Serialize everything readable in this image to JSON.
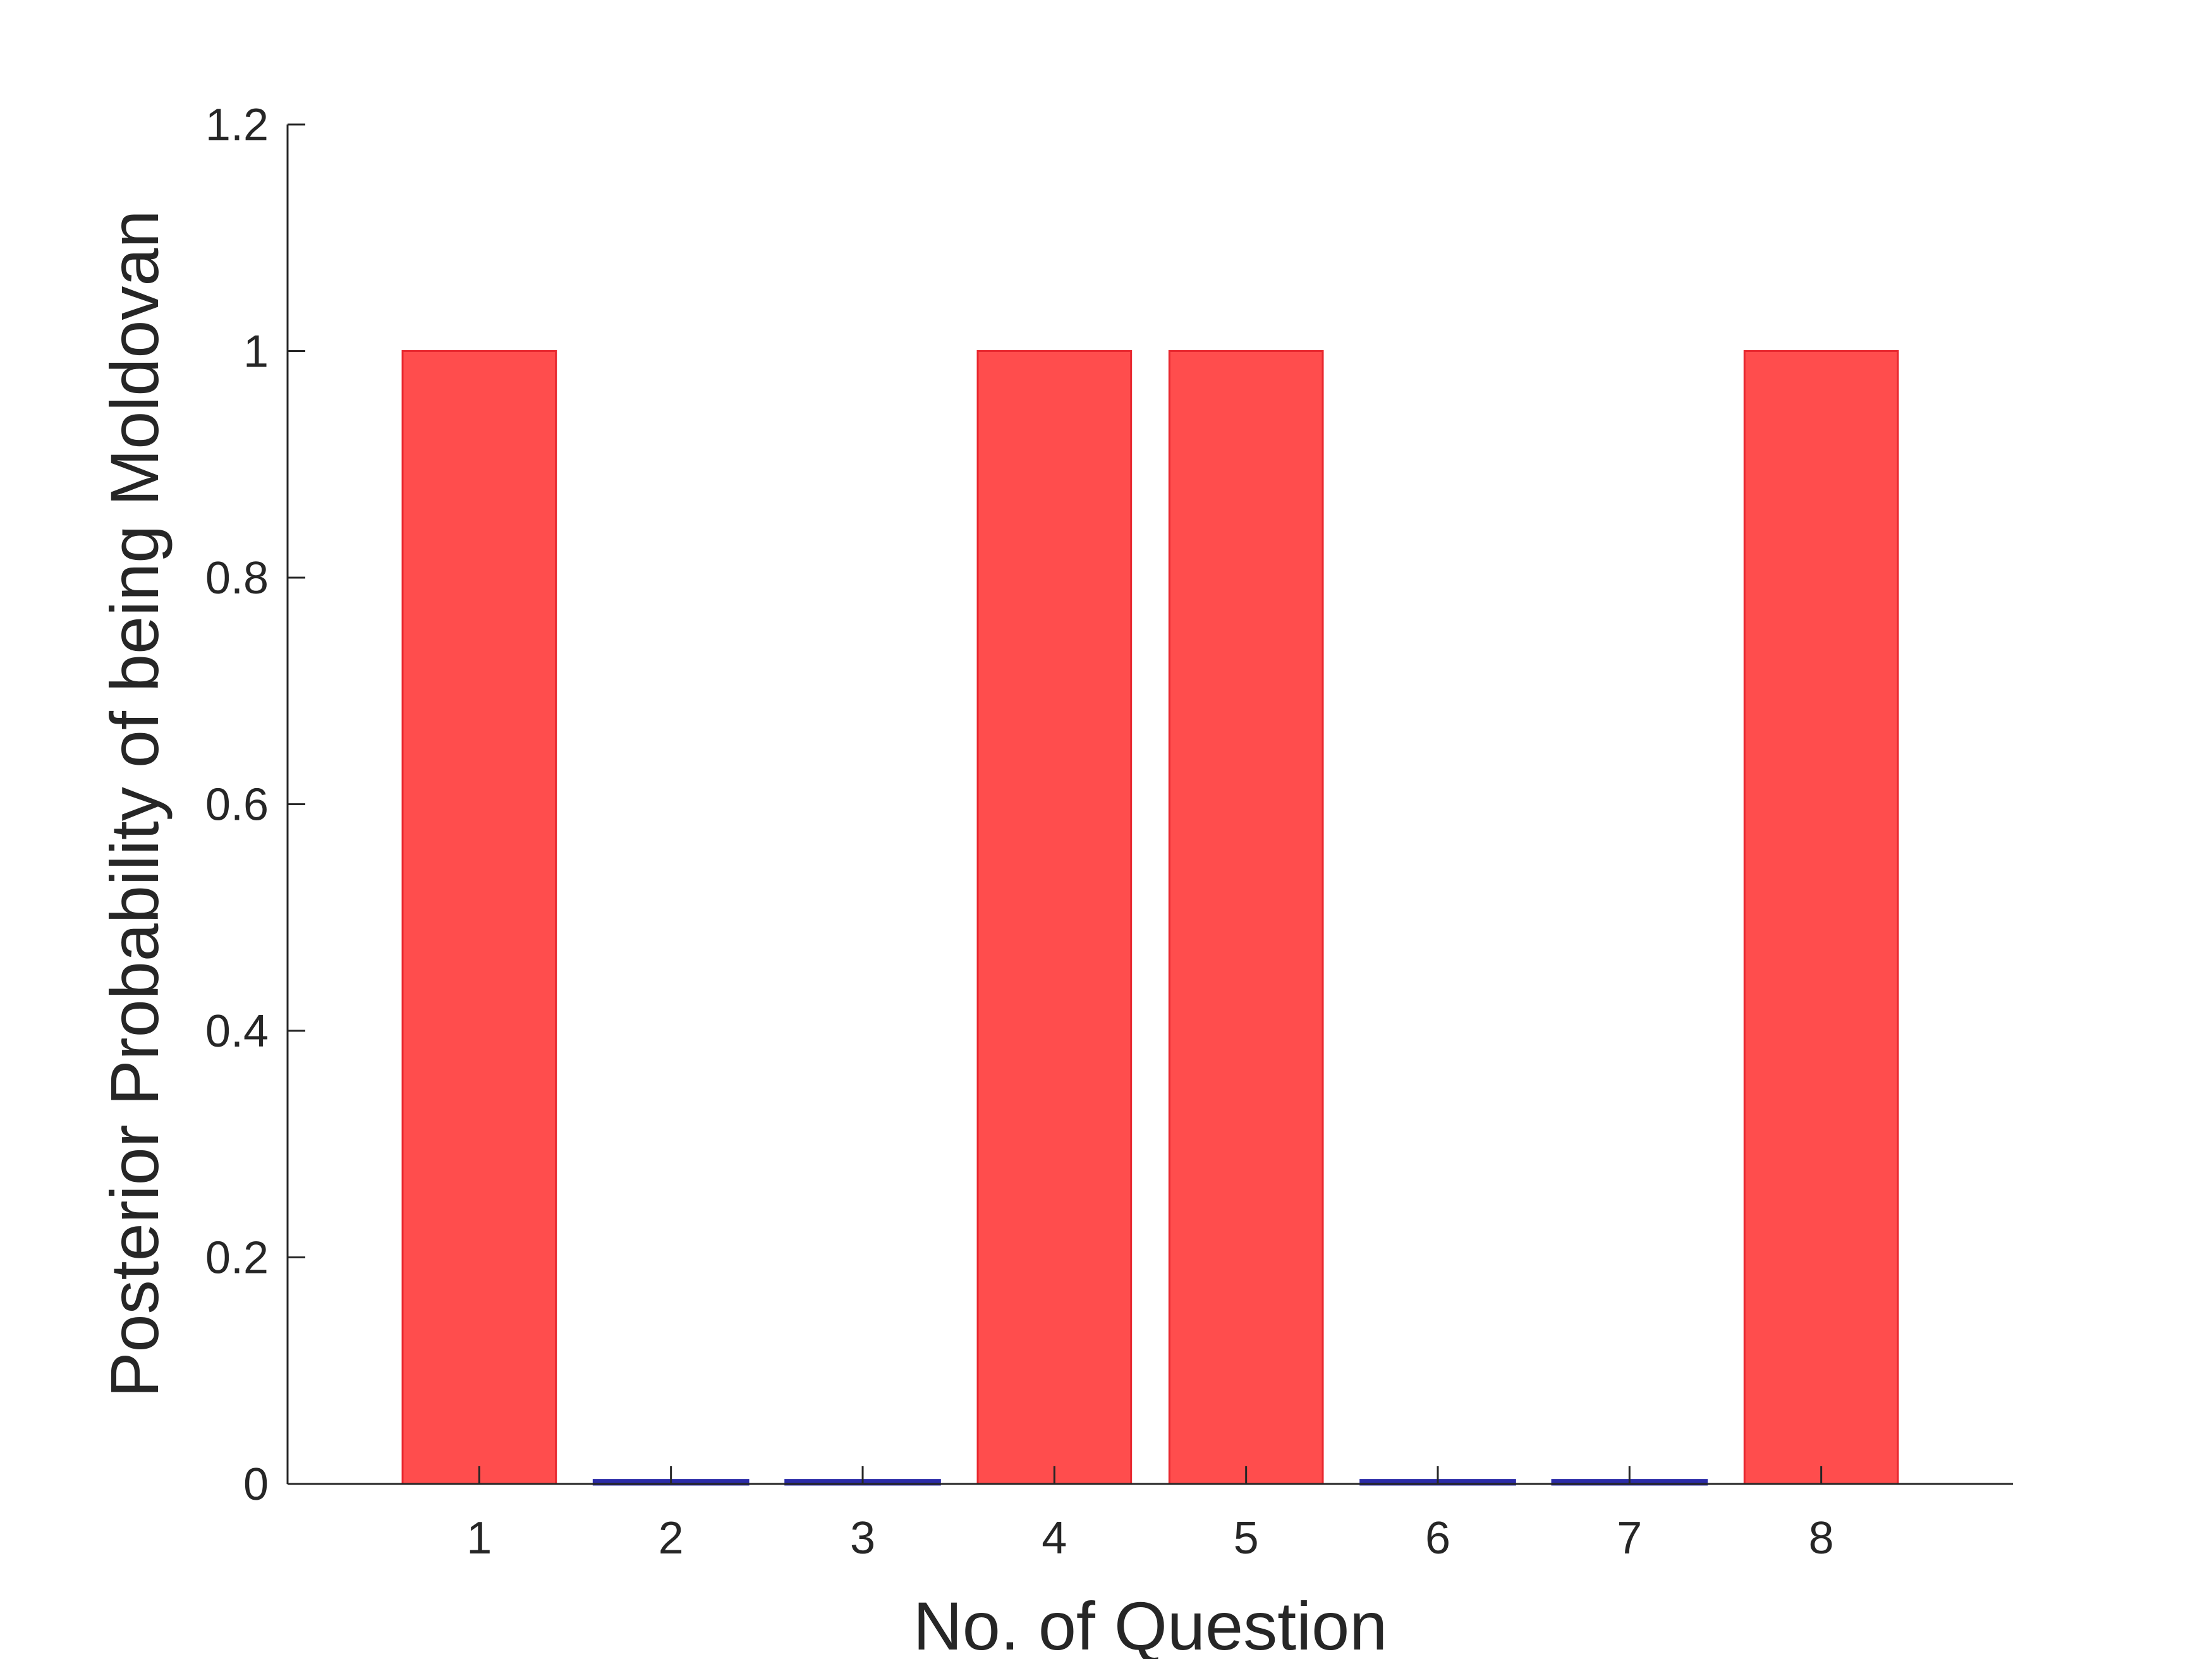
{
  "chart_data": {
    "type": "bar",
    "title": "",
    "xlabel": "No. of Question",
    "ylabel": "Posterior Probability of being Moldovan",
    "categories": [
      "1",
      "2",
      "3",
      "4",
      "5",
      "6",
      "7",
      "8"
    ],
    "values": [
      1,
      0.003,
      0.003,
      1,
      1,
      0.003,
      0.003,
      1
    ],
    "ylim": [
      0,
      1.2
    ],
    "yticks": [
      "0",
      "0.2",
      "0.4",
      "0.6",
      "0.8",
      "1",
      "1.2"
    ],
    "ytick_values": [
      0,
      0.2,
      0.4,
      0.6,
      0.8,
      1,
      1.2
    ],
    "grid": false,
    "legend": "none",
    "colors": {
      "high": "#ff4d4d",
      "high_edge": "#e8282f",
      "low": "#2b2ba8",
      "axis": "#262626"
    }
  }
}
